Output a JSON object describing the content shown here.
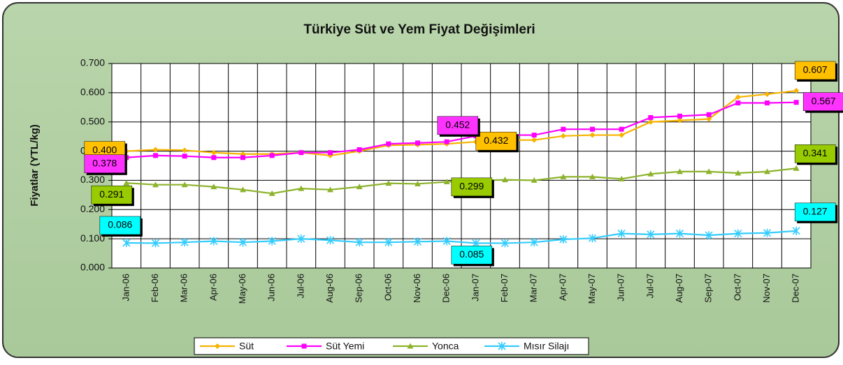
{
  "chart_data": {
    "type": "line",
    "title": "Türkiye Süt ve Yem Fiyat Değişimleri",
    "y_label": "Fiyatlar (YTL/kg)",
    "categories": [
      "Jan-06",
      "Feb-06",
      "Mar-06",
      "Apr-06",
      "May-06",
      "Jun-06",
      "Jul-06",
      "Aug-06",
      "Sep-06",
      "Oct-06",
      "Nov-06",
      "Dec-06",
      "Jan-07",
      "Feb-07",
      "Mar-07",
      "Apr-07",
      "May-07",
      "Jun-07",
      "Jul-07",
      "Aug-07",
      "Sep-07",
      "Oct-07",
      "Nov-07",
      "Dec-07"
    ],
    "ylim": [
      0,
      0.7
    ],
    "yticks": [
      {
        "value": 0,
        "label": "0.000"
      },
      {
        "value": 0.1,
        "label": "0.100"
      },
      {
        "value": 0.2,
        "label": "0.200"
      },
      {
        "value": 0.3,
        "label": "0.300"
      },
      {
        "value": 0.4,
        "label": "0.400"
      },
      {
        "value": 0.5,
        "label": "0.500"
      },
      {
        "value": 0.6,
        "label": "0.600"
      },
      {
        "value": 0.7,
        "label": "0.700"
      }
    ],
    "grid": true,
    "legend": "bottom",
    "series": [
      {
        "name": "Süt",
        "color": "#f5b400",
        "label_color": "#ffc000",
        "marker": "diamond",
        "values": [
          0.4,
          0.405,
          0.403,
          0.395,
          0.39,
          0.39,
          0.395,
          0.385,
          0.4,
          0.42,
          0.422,
          0.425,
          0.432,
          0.438,
          0.438,
          0.452,
          0.455,
          0.455,
          0.5,
          0.505,
          0.51,
          0.585,
          0.595,
          0.607
        ],
        "value_labels": [
          "0.400",
          null,
          null,
          null,
          null,
          null,
          null,
          null,
          null,
          null,
          null,
          null,
          "0.432",
          null,
          null,
          null,
          null,
          null,
          null,
          null,
          null,
          null,
          null,
          "0.607"
        ]
      },
      {
        "name": "Süt Yemi",
        "color": "#ff00ff",
        "label_color": "#ff33ff",
        "marker": "square",
        "values": [
          0.378,
          0.385,
          0.383,
          0.378,
          0.378,
          0.385,
          0.395,
          0.395,
          0.405,
          0.425,
          0.428,
          0.432,
          0.452,
          0.455,
          0.455,
          0.475,
          0.475,
          0.475,
          0.515,
          0.52,
          0.525,
          0.565,
          0.565,
          0.567
        ],
        "value_labels": [
          "0.378",
          null,
          null,
          null,
          null,
          null,
          null,
          null,
          null,
          null,
          null,
          null,
          "0.452",
          null,
          null,
          null,
          null,
          null,
          null,
          null,
          null,
          null,
          null,
          "0.567"
        ]
      },
      {
        "name": "Yonca",
        "color": "#8db32c",
        "label_color": "#99cc00",
        "marker": "triangle",
        "values": [
          0.291,
          0.285,
          0.285,
          0.278,
          0.268,
          0.255,
          0.272,
          0.268,
          0.278,
          0.29,
          0.288,
          0.295,
          0.299,
          0.302,
          0.3,
          0.312,
          0.312,
          0.305,
          0.322,
          0.33,
          0.33,
          0.325,
          0.33,
          0.341
        ],
        "value_labels": [
          "0.291",
          null,
          null,
          null,
          null,
          null,
          null,
          null,
          null,
          null,
          null,
          null,
          "0.299",
          null,
          null,
          null,
          null,
          null,
          null,
          null,
          null,
          null,
          null,
          "0.341"
        ]
      },
      {
        "name": "Mısır Silajı",
        "color": "#33ccff",
        "label_color": "#00ffff",
        "marker": "star",
        "values": [
          0.086,
          0.085,
          0.088,
          0.092,
          0.088,
          0.092,
          0.1,
          0.095,
          0.088,
          0.088,
          0.09,
          0.092,
          0.085,
          0.085,
          0.088,
          0.098,
          0.102,
          0.118,
          0.115,
          0.118,
          0.112,
          0.118,
          0.12,
          0.127
        ],
        "value_labels": [
          "0.086",
          null,
          null,
          null,
          null,
          null,
          null,
          null,
          null,
          null,
          null,
          null,
          "0.085",
          null,
          null,
          null,
          null,
          null,
          null,
          null,
          null,
          null,
          null,
          "0.127"
        ]
      }
    ]
  }
}
